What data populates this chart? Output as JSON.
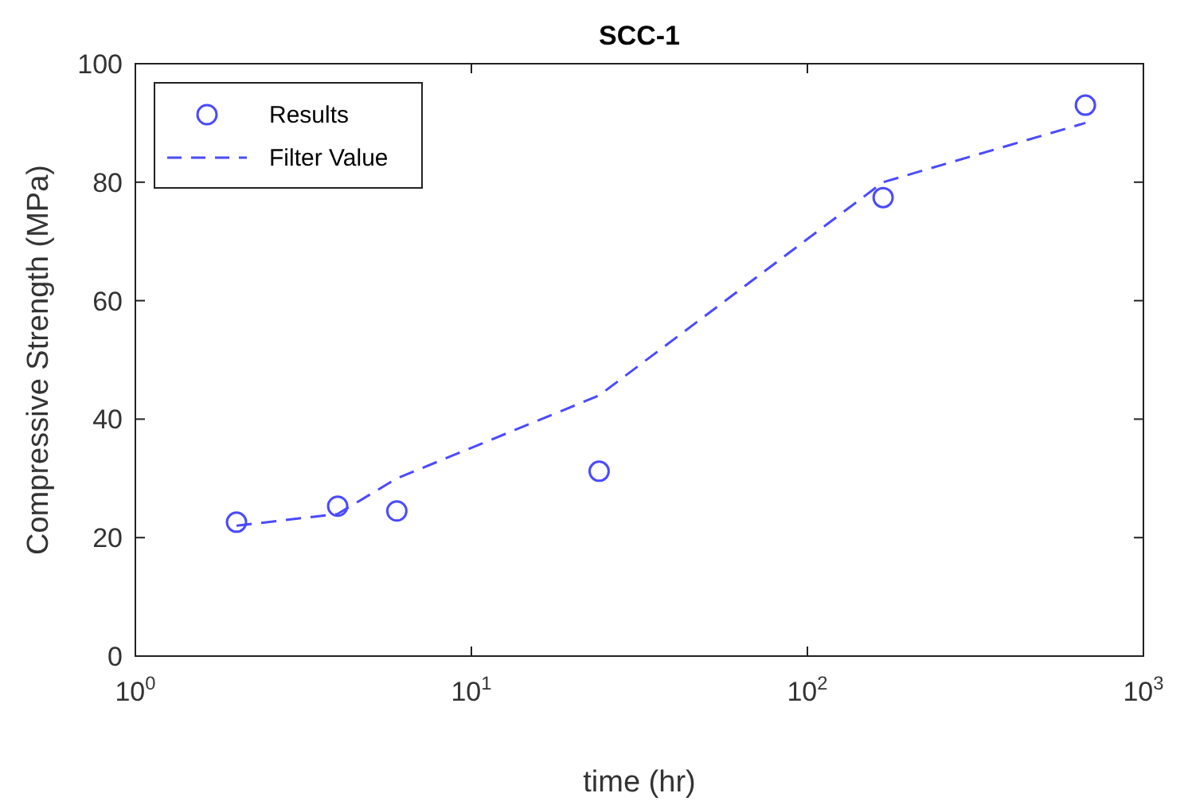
{
  "chart_data": {
    "type": "scatter",
    "title": "SCC-1",
    "xlabel": "time (hr)",
    "ylabel": "Compressive Strength (MPa)",
    "log": "x",
    "xlim": [
      1,
      1000
    ],
    "xticks": [
      {
        "value": 1,
        "label": "10$^{0}$"
      },
      {
        "value": 10,
        "label": "10$^{1}$"
      },
      {
        "value": 100,
        "label": "10$^{2}$"
      },
      {
        "value": 1000,
        "label": "10$^{3}$"
      }
    ],
    "ylim": [
      0,
      100
    ],
    "yticks": [
      0,
      20,
      40,
      60,
      80,
      100
    ],
    "legend": "top left",
    "grid": false,
    "series": [
      {
        "name": "Results",
        "marker": "circle",
        "color": "#4a4aff",
        "x": [
          2,
          4,
          6,
          24,
          168,
          672
        ],
        "values": [
          22.6,
          25.3,
          24.5,
          31.2,
          77.4,
          93
        ]
      },
      {
        "name": "Filter Value",
        "type": "line",
        "line_style": "dashed",
        "marker": "none",
        "color": "#4a4aff",
        "x": [
          2,
          4,
          6,
          24,
          168,
          672
        ],
        "values": [
          22,
          24,
          30,
          44,
          80,
          90
        ]
      }
    ]
  }
}
